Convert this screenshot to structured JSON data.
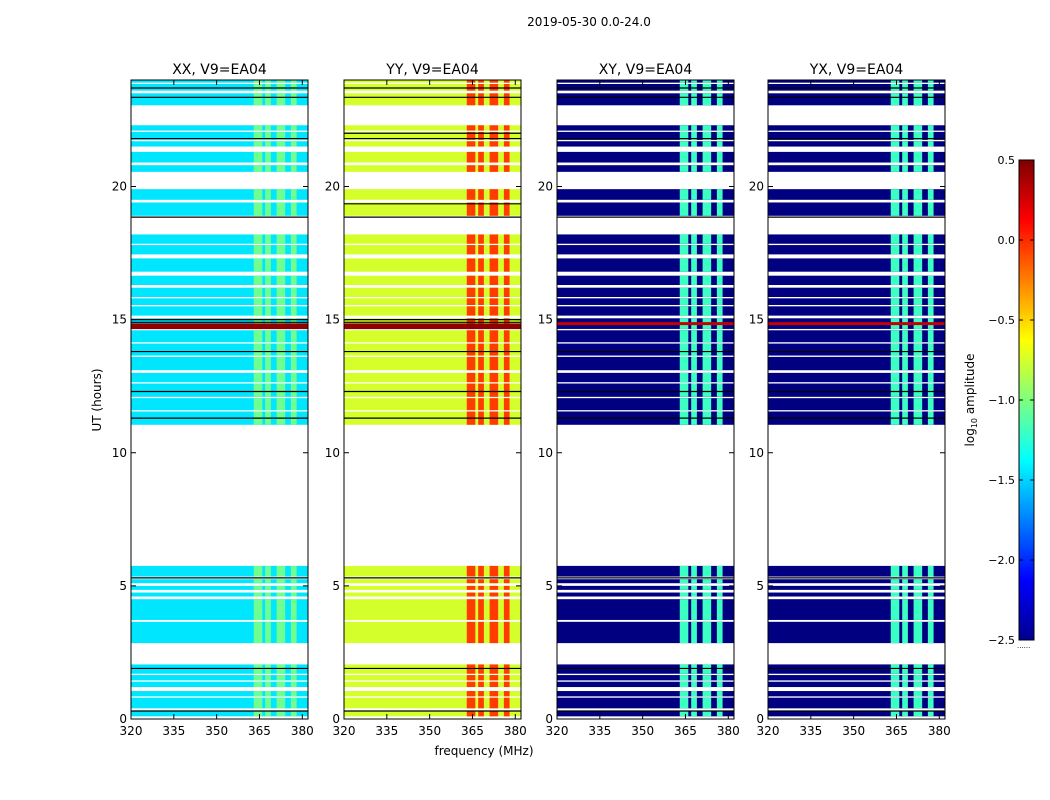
{
  "figure": {
    "suptitle": "2019-05-30 0.0-24.0",
    "ylabel": "UT (hours)",
    "xlabel": "frequency (MHz)",
    "colorbar_label_prefix": "log",
    "colorbar_label_sub": "10",
    "colorbar_label_suffix": " amplitude",
    "colorbar_footer": "......"
  },
  "chart_data": {
    "type": "heatmap",
    "xlim": [
      320,
      382
    ],
    "ylim": [
      0,
      24
    ],
    "xticks": [
      320,
      335,
      350,
      365,
      380
    ],
    "yticks": [
      0,
      5,
      10,
      15,
      20
    ],
    "colorbar": {
      "colormap": "jet",
      "vmin": -2.5,
      "vmax": 0.5,
      "ticks": [
        {
          "value": 0.5,
          "label": "0.5"
        },
        {
          "value": 0.0,
          "label": "0.0"
        },
        {
          "value": -0.5,
          "label": "−0.5"
        },
        {
          "value": -1.0,
          "label": "−1.0"
        },
        {
          "value": -1.5,
          "label": "−1.5"
        },
        {
          "value": -2.0,
          "label": "−2.0"
        },
        {
          "value": -2.5,
          "label": "−2.5"
        }
      ]
    },
    "data_bands_hours": [
      [
        0.1,
        0.3
      ],
      [
        0.4,
        0.8
      ],
      [
        0.85,
        1.05
      ],
      [
        1.2,
        1.4
      ],
      [
        1.45,
        1.65
      ],
      [
        1.7,
        2.05
      ],
      [
        2.85,
        3.65
      ],
      [
        3.72,
        4.5
      ],
      [
        4.6,
        4.75
      ],
      [
        4.85,
        5.0
      ],
      [
        5.1,
        5.25
      ],
      [
        5.35,
        5.75
      ],
      [
        11.05,
        11.55
      ],
      [
        11.6,
        12.05
      ],
      [
        12.1,
        12.6
      ],
      [
        12.65,
        13.0
      ],
      [
        13.1,
        13.6
      ],
      [
        13.65,
        14.1
      ],
      [
        14.15,
        14.6
      ],
      [
        14.65,
        15.05
      ],
      [
        15.15,
        15.5
      ],
      [
        15.55,
        15.8
      ],
      [
        15.85,
        16.2
      ],
      [
        16.3,
        16.65
      ],
      [
        16.8,
        17.3
      ],
      [
        17.45,
        17.8
      ],
      [
        17.85,
        18.2
      ],
      [
        18.9,
        19.4
      ],
      [
        19.5,
        19.9
      ],
      [
        20.55,
        20.8
      ],
      [
        20.9,
        21.3
      ],
      [
        21.5,
        21.7
      ],
      [
        21.75,
        22.05
      ],
      [
        22.1,
        22.3
      ],
      [
        23.05,
        23.5
      ],
      [
        23.6,
        23.85
      ],
      [
        23.9,
        24.0
      ]
    ],
    "panels": [
      {
        "title": "XX, V9=EA04",
        "base_level": -1.45,
        "rfi_level": -1.05,
        "spike_level": 0.45,
        "rfi_bands_mhz": [
          [
            363,
            366
          ],
          [
            367,
            369
          ],
          [
            371,
            374
          ],
          [
            376,
            378
          ]
        ],
        "spike_times_hours": [
          14.7,
          14.8
        ],
        "black_lines_hours": [
          0.3,
          1.9,
          5.3,
          11.3,
          12.3,
          13.8,
          14.9,
          15.0,
          18.85,
          21.8,
          23.35,
          23.7
        ]
      },
      {
        "title": "YY, V9=EA04",
        "base_level": -0.75,
        "rfi_level": -0.05,
        "spike_level": 0.45,
        "rfi_bands_mhz": [
          [
            363,
            366
          ],
          [
            367,
            369
          ],
          [
            371,
            374
          ],
          [
            376,
            378
          ]
        ],
        "spike_times_hours": [
          14.7,
          14.8
        ],
        "black_lines_hours": [
          0.3,
          1.9,
          5.3,
          11.3,
          12.3,
          13.8,
          14.9,
          15.0,
          18.85,
          19.35,
          21.8,
          22.0,
          23.35,
          23.7
        ]
      },
      {
        "title": "XY, V9=EA04",
        "base_level": -2.5,
        "rfi_level": -1.2,
        "spike_level": 0.3,
        "rfi_bands_mhz": [
          [
            363,
            366
          ],
          [
            367,
            369
          ],
          [
            371,
            374
          ],
          [
            376,
            378
          ]
        ],
        "spike_times_hours": [
          14.85
        ],
        "black_lines_hours": [
          0.3,
          1.9,
          5.3,
          11.3,
          12.3,
          13.8,
          18.85,
          21.8,
          23.35,
          23.7
        ]
      },
      {
        "title": "YX, V9=EA04",
        "base_level": -2.5,
        "rfi_level": -1.2,
        "spike_level": 0.3,
        "rfi_bands_mhz": [
          [
            363,
            366
          ],
          [
            367,
            369
          ],
          [
            371,
            374
          ],
          [
            376,
            378
          ]
        ],
        "spike_times_hours": [
          14.85
        ],
        "black_lines_hours": [
          0.3,
          1.9,
          5.3,
          11.3,
          12.3,
          13.8,
          18.85,
          21.8,
          23.35,
          23.7
        ]
      }
    ]
  }
}
